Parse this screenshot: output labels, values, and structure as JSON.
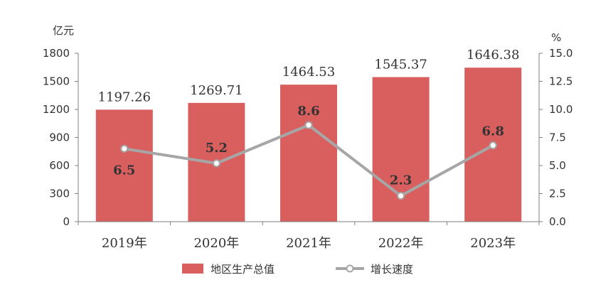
{
  "chart_data": {
    "type": "bar",
    "categories": [
      "2019年",
      "2020年",
      "2021年",
      "2022年",
      "2023年"
    ],
    "series": [
      {
        "name": "地区生产总值",
        "type": "bar",
        "axis": "left",
        "values": [
          1197.26,
          1269.71,
          1464.53,
          1545.37,
          1646.38
        ],
        "labels": [
          "1197.26",
          "1269.71",
          "1464.53",
          "1545.37",
          "1646.38"
        ]
      },
      {
        "name": "增长速度",
        "type": "line",
        "axis": "right",
        "values": [
          6.5,
          5.2,
          8.6,
          2.3,
          6.8
        ],
        "labels": [
          "6.5",
          "5.2",
          "8.6",
          "2.3",
          "6.8"
        ]
      }
    ],
    "left_axis": {
      "unit": "亿元",
      "range": [
        0,
        1800
      ],
      "ticks": [
        "0",
        "300",
        "600",
        "900",
        "1200",
        "1500",
        "1800"
      ]
    },
    "right_axis": {
      "unit": "%",
      "range": [
        0,
        15
      ],
      "ticks": [
        "0.0",
        "2.5",
        "5.0",
        "7.5",
        "10.0",
        "12.5",
        "15.0"
      ]
    },
    "grid": false,
    "legend_position": "bottom",
    "colors": {
      "bar": "#d95f5f",
      "line": "#a6a6a6",
      "marker_fill": "#ffffff",
      "axis": "#7f7f7f"
    }
  }
}
